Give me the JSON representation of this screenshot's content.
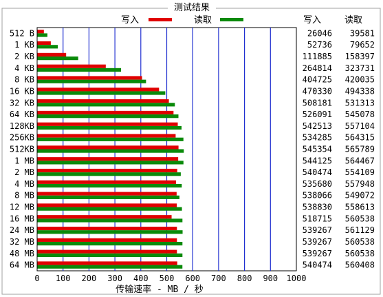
{
  "chart_data": {
    "type": "bar",
    "orientation": "horizontal",
    "title": "测试结果",
    "xlabel": "传输速率 - MB / 秒",
    "xlim": [
      0,
      1000
    ],
    "xticks": [
      "0",
      "100",
      "200",
      "300",
      "400",
      "500",
      "600",
      "700",
      "800",
      "900",
      "1000"
    ],
    "grid": true,
    "legend_placement": "top",
    "categories": [
      "512 B",
      "1 KB",
      "2 KB",
      "4 KB",
      "8 KB",
      "16 KB",
      "32 KB",
      "64 KB",
      "128KB",
      "256KB",
      "512KB",
      "1 MB",
      "2 MB",
      "4 MB",
      "8 MB",
      "12 MB",
      "16 MB",
      "24 MB",
      "32 MB",
      "48 MB",
      "64 MB"
    ],
    "series": [
      {
        "name": "写入",
        "color": "#e00000",
        "values": [
          26.046,
          52.736,
          111.885,
          264.814,
          404.725,
          470.33,
          508.181,
          526.091,
          542.513,
          534.285,
          545.354,
          544.125,
          540.474,
          535.68,
          538.066,
          538.83,
          518.715,
          539.267,
          539.267,
          539.267,
          540.474
        ]
      },
      {
        "name": "读取",
        "color": "#0a8a0a",
        "values": [
          39.581,
          79.652,
          158.397,
          323.731,
          420.035,
          494.338,
          531.313,
          545.078,
          557.104,
          564.315,
          565.789,
          564.467,
          554.109,
          557.948,
          549.072,
          558.613,
          560.538,
          561.129,
          560.538,
          560.538,
          560.408
        ]
      }
    ],
    "table": {
      "headers": [
        "写入",
        "读取"
      ],
      "write": [
        "26046",
        "52736",
        "111885",
        "264814",
        "404725",
        "470330",
        "508181",
        "526091",
        "542513",
        "534285",
        "545354",
        "544125",
        "540474",
        "535680",
        "538066",
        "538830",
        "518715",
        "539267",
        "539267",
        "539267",
        "540474"
      ],
      "read": [
        "39581",
        "79652",
        "158397",
        "323731",
        "420035",
        "494338",
        "531313",
        "545078",
        "557104",
        "564315",
        "565789",
        "564467",
        "554109",
        "557948",
        "549072",
        "558613",
        "560538",
        "561129",
        "560538",
        "560538",
        "560408"
      ]
    }
  }
}
